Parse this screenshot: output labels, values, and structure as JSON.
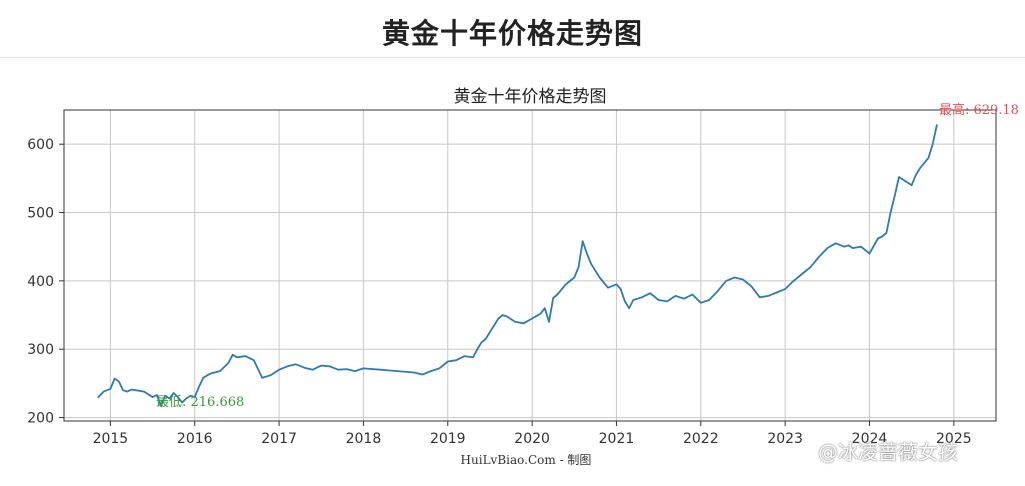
{
  "page": {
    "title": "黄金十年价格走势图",
    "watermark": "@冰凌蔷薇女孩"
  },
  "colors": {
    "line": "#2f7bb0",
    "min_annotation": "#3a9a3a",
    "max_annotation": "#e05050",
    "grid": "#c8c8c8",
    "text": "#333333"
  },
  "chart_data": {
    "type": "line",
    "title": "黄金十年价格走势图",
    "xlabel": "HuiLvBiao.Com - 制图",
    "ylabel": "",
    "xlim": [
      2014.45,
      2025.5
    ],
    "ylim": [
      195,
      650
    ],
    "xticks": [
      2015,
      2016,
      2017,
      2018,
      2019,
      2020,
      2021,
      2022,
      2023,
      2024,
      2025
    ],
    "yticks": [
      200,
      300,
      400,
      500,
      600
    ],
    "grid": true,
    "annotations": [
      {
        "label": "最低: 216.668",
        "x": 2015.6,
        "y": 216.668,
        "kind": "min"
      },
      {
        "label": "最高: 629.18",
        "x": 2024.8,
        "y": 629.18,
        "kind": "max"
      }
    ],
    "series": [
      {
        "x": [
          2014.85,
          2014.92,
          2015.0,
          2015.05,
          2015.1,
          2015.15,
          2015.2,
          2015.25,
          2015.3,
          2015.4,
          2015.5,
          2015.55,
          2015.6,
          2015.65,
          2015.7,
          2015.75,
          2015.8,
          2015.85,
          2015.9,
          2015.95,
          2016.0,
          2016.05,
          2016.1,
          2016.15,
          2016.2,
          2016.3,
          2016.4,
          2016.45,
          2016.5,
          2016.55,
          2016.6,
          2016.7,
          2016.8,
          2016.9,
          2017.0,
          2017.1,
          2017.2,
          2017.3,
          2017.4,
          2017.5,
          2017.6,
          2017.7,
          2017.8,
          2017.9,
          2018.0,
          2018.2,
          2018.4,
          2018.6,
          2018.7,
          2018.8,
          2018.9,
          2019.0,
          2019.1,
          2019.2,
          2019.3,
          2019.35,
          2019.4,
          2019.45,
          2019.5,
          2019.55,
          2019.6,
          2019.65,
          2019.7,
          2019.8,
          2019.9,
          2020.0,
          2020.1,
          2020.15,
          2020.2,
          2020.25,
          2020.3,
          2020.4,
          2020.5,
          2020.55,
          2020.6,
          2020.65,
          2020.7,
          2020.8,
          2020.9,
          2021.0,
          2021.05,
          2021.1,
          2021.15,
          2021.2,
          2021.3,
          2021.4,
          2021.5,
          2021.6,
          2021.7,
          2021.8,
          2021.9,
          2022.0,
          2022.1,
          2022.2,
          2022.3,
          2022.4,
          2022.5,
          2022.6,
          2022.7,
          2022.8,
          2022.9,
          2023.0,
          2023.1,
          2023.2,
          2023.3,
          2023.4,
          2023.5,
          2023.6,
          2023.7,
          2023.75,
          2023.8,
          2023.9,
          2024.0,
          2024.1,
          2024.15,
          2024.2,
          2024.25,
          2024.3,
          2024.35,
          2024.4,
          2024.5,
          2024.55,
          2024.6,
          2024.7,
          2024.75,
          2024.8
        ],
        "y": [
          229,
          238,
          242,
          257,
          253,
          240,
          238,
          241,
          240,
          238,
          230,
          233,
          217,
          232,
          228,
          236,
          230,
          222,
          228,
          232,
          230,
          245,
          258,
          262,
          265,
          268,
          280,
          292,
          288,
          289,
          290,
          284,
          258,
          262,
          270,
          275,
          278,
          273,
          270,
          276,
          275,
          270,
          271,
          268,
          272,
          270,
          268,
          266,
          263,
          268,
          272,
          282,
          284,
          290,
          288,
          300,
          310,
          315,
          325,
          335,
          345,
          350,
          348,
          340,
          338,
          345,
          352,
          360,
          340,
          375,
          380,
          395,
          405,
          420,
          458,
          440,
          425,
          405,
          390,
          395,
          388,
          370,
          360,
          372,
          376,
          382,
          372,
          370,
          378,
          374,
          380,
          368,
          372,
          385,
          400,
          405,
          402,
          392,
          376,
          378,
          383,
          388,
          400,
          410,
          420,
          435,
          448,
          455,
          450,
          452,
          448,
          450,
          440,
          462,
          465,
          470,
          500,
          525,
          552,
          548,
          540,
          555,
          565,
          580,
          600,
          629
        ]
      }
    ]
  }
}
